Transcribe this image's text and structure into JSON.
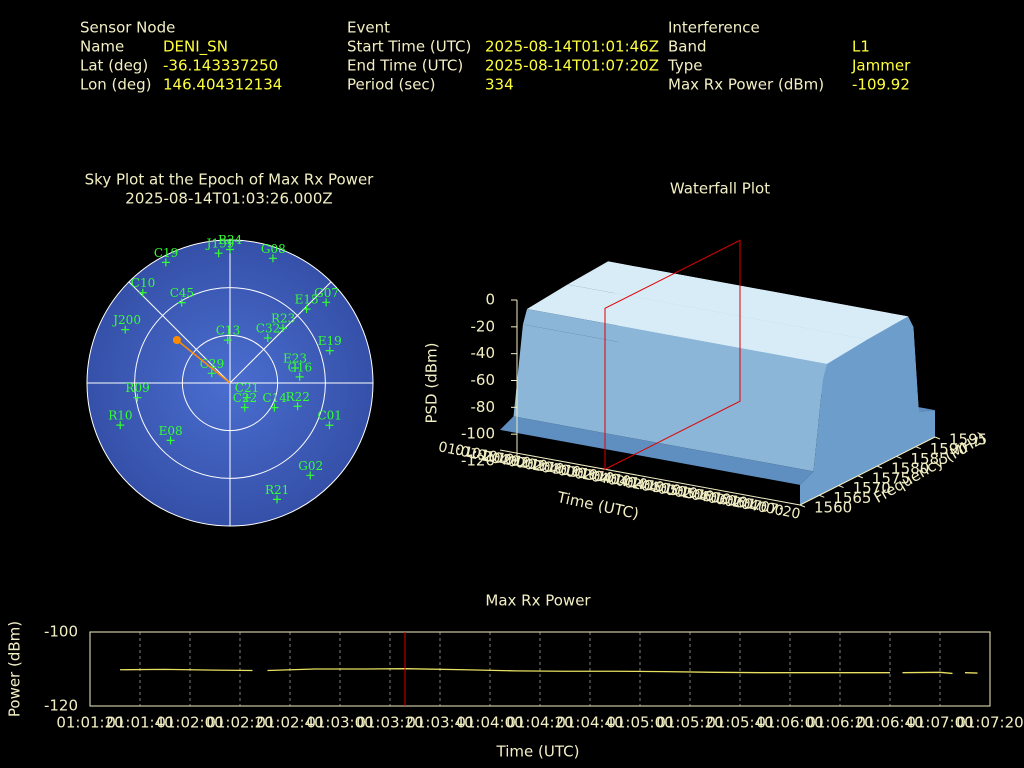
{
  "header": {
    "columns": [
      {
        "title": "Sensor Node",
        "rows": [
          {
            "label": "Name",
            "value": "DENI_SN"
          },
          {
            "label": "Lat (deg)",
            "value": "-36.143337250"
          },
          {
            "label": "Lon (deg)",
            "value": "146.404312134"
          }
        ]
      },
      {
        "title": "Event",
        "rows": [
          {
            "label": "Start Time (UTC)",
            "value": "2025-08-14T01:01:46Z"
          },
          {
            "label": "End Time (UTC)",
            "value": "2025-08-14T01:07:20Z"
          },
          {
            "label": "Period (sec)",
            "value": "334"
          }
        ]
      },
      {
        "title": "Interference",
        "rows": [
          {
            "label": "Band",
            "value": "L1"
          },
          {
            "label": "Type",
            "value": "Jammer"
          },
          {
            "label": "Max Rx Power (dBm)",
            "value": "-109.92"
          }
        ]
      }
    ]
  },
  "sky_plot": {
    "title": "Sky Plot at the Epoch of Max Rx Power",
    "subtitle": "2025-08-14T01:03:26.000Z",
    "satellites": [
      {
        "name": "R24",
        "az": 0,
        "el": 6
      },
      {
        "name": "G08",
        "az": 19,
        "el": 7
      },
      {
        "name": "G07",
        "az": 50,
        "el": 11
      },
      {
        "name": "E15",
        "az": 46,
        "el": 23
      },
      {
        "name": "R23",
        "az": 44,
        "el": 42
      },
      {
        "name": "E19",
        "az": 72,
        "el": 24
      },
      {
        "name": "E23",
        "az": 77,
        "el": 48
      },
      {
        "name": "C16",
        "az": 85,
        "el": 46
      },
      {
        "name": "R22",
        "az": 109,
        "el": 45
      },
      {
        "name": "C01",
        "az": 113,
        "el": 22
      },
      {
        "name": "G02",
        "az": 139,
        "el": 13
      },
      {
        "name": "R21",
        "az": 158,
        "el": 11
      },
      {
        "name": "C14",
        "az": 119,
        "el": 58
      },
      {
        "name": "C22",
        "az": 149,
        "el": 72
      },
      {
        "name": "C21",
        "az": 131,
        "el": 76
      },
      {
        "name": "C13",
        "az": 357,
        "el": 63
      },
      {
        "name": "C32",
        "az": 40,
        "el": 53
      },
      {
        "name": "C29",
        "az": 298,
        "el": 77
      },
      {
        "name": "E08",
        "az": 226,
        "el": 38
      },
      {
        "name": "R10",
        "az": 249,
        "el": 16
      },
      {
        "name": "R09",
        "az": 261,
        "el": 31
      },
      {
        "name": "J200",
        "az": 297,
        "el": 16
      },
      {
        "name": "C10",
        "az": 316,
        "el": 11
      },
      {
        "name": "C19",
        "az": 332,
        "el": 4
      },
      {
        "name": "J199",
        "az": 355,
        "el": 8
      },
      {
        "name": "C45",
        "az": 329,
        "el": 31
      }
    ],
    "jammer": {
      "az": 309,
      "el": 47,
      "color": "#ff8c00"
    }
  },
  "waterfall": {
    "title": "Waterfall Plot",
    "zlabel": "PSD (dBm)",
    "xlabel": "Time (UTC)",
    "ylabel": "Frequency (MHz)",
    "zlim": [
      -120,
      0
    ],
    "zticks": [
      -120,
      -100,
      -80,
      -60,
      -40,
      -20,
      0
    ],
    "ylim": [
      1560,
      1595
    ],
    "yticks": [
      1560,
      1565,
      1570,
      1575,
      1580,
      1585,
      1590,
      1595
    ],
    "xlim": [
      "01:01:20",
      "01:07:20"
    ],
    "xticks": [
      "01:01:20",
      "01:01:40",
      "01:02:00",
      "01:02:20",
      "01:02:40",
      "01:03:00",
      "01:03:20",
      "01:03:40",
      "01:04:00",
      "01:04:20",
      "01:04:40",
      "01:05:00",
      "01:05:20",
      "01:05:40",
      "01:06:00",
      "01:06:20",
      "01:06:40",
      "01:07:00",
      "01:07:20"
    ],
    "marker_x": "01:03:26"
  },
  "chart_data": {
    "type": "line",
    "title": "Max Rx Power",
    "xlabel": "Time (UTC)",
    "ylabel": "Power (dBm)",
    "ylim": [
      -120,
      -100
    ],
    "yticks": [
      -120,
      -100
    ],
    "xlim": [
      "01:01:20",
      "01:07:20"
    ],
    "xticks": [
      "01:01:20",
      "01:01:40",
      "01:02:00",
      "01:02:20",
      "01:02:40",
      "01:03:00",
      "01:03:20",
      "01:03:40",
      "01:04:00",
      "01:04:20",
      "01:04:40",
      "01:05:00",
      "01:05:20",
      "01:05:40",
      "01:06:00",
      "01:06:20",
      "01:06:40",
      "01:07:00",
      "01:07:20"
    ],
    "x": [
      "01:01:32",
      "01:01:50",
      "01:02:10",
      "01:02:25",
      "01:02:28",
      "01:02:31",
      "01:02:50",
      "01:03:10",
      "01:03:26",
      "01:03:50",
      "01:04:10",
      "01:04:30",
      "01:04:50",
      "01:05:10",
      "01:05:30",
      "01:05:50",
      "01:06:10",
      "01:06:30",
      "01:06:40",
      "01:06:43",
      "01:06:45",
      "01:07:00",
      "01:07:05",
      "01:07:08",
      "01:07:10",
      "01:07:15"
    ],
    "values": [
      -110.2,
      -110.1,
      -110.3,
      -110.4,
      null,
      -110.4,
      -110.0,
      -110.0,
      -109.92,
      -110.2,
      -110.5,
      -110.6,
      -110.6,
      -110.7,
      -110.9,
      -111.0,
      -111.0,
      -111.0,
      -111.0,
      null,
      -111.0,
      -110.9,
      -111.2,
      null,
      -111.0,
      -111.1
    ],
    "color": "#e8e060",
    "marker_x": "01:03:26",
    "marker_color": "#e00000",
    "grid": true
  }
}
